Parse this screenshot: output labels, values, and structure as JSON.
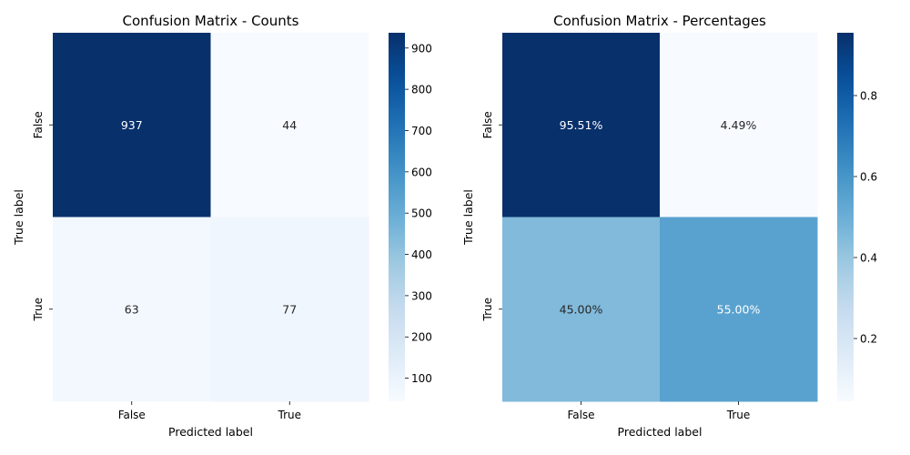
{
  "chart_data": [
    {
      "type": "heatmap",
      "title": "Confusion Matrix - Counts",
      "xlabel": "Predicted label",
      "ylabel": "True label",
      "x_categories": [
        "False",
        "True"
      ],
      "y_categories": [
        "False",
        "True"
      ],
      "values": [
        [
          937,
          44
        ],
        [
          63,
          77
        ]
      ],
      "cell_labels": [
        [
          "937",
          "44"
        ],
        [
          "63",
          "77"
        ]
      ],
      "colormap": "Blues",
      "vmin": 44,
      "vmax": 937,
      "colorbar_ticks": [
        100,
        200,
        300,
        400,
        500,
        600,
        700,
        800,
        900
      ],
      "colorbar_tick_labels": [
        "100",
        "200",
        "300",
        "400",
        "500",
        "600",
        "700",
        "800",
        "900"
      ]
    },
    {
      "type": "heatmap",
      "title": "Confusion Matrix - Percentages",
      "xlabel": "Predicted label",
      "ylabel": "True label",
      "x_categories": [
        "False",
        "True"
      ],
      "y_categories": [
        "False",
        "True"
      ],
      "values": [
        [
          0.9551,
          0.0449
        ],
        [
          0.45,
          0.55
        ]
      ],
      "cell_labels": [
        [
          "95.51%",
          "4.49%"
        ],
        [
          "45.00%",
          "55.00%"
        ]
      ],
      "colormap": "Blues",
      "vmin": 0.0449,
      "vmax": 0.9551,
      "colorbar_ticks": [
        0.2,
        0.4,
        0.6,
        0.8
      ],
      "colorbar_tick_labels": [
        "0.2",
        "0.4",
        "0.6",
        "0.8"
      ]
    }
  ]
}
